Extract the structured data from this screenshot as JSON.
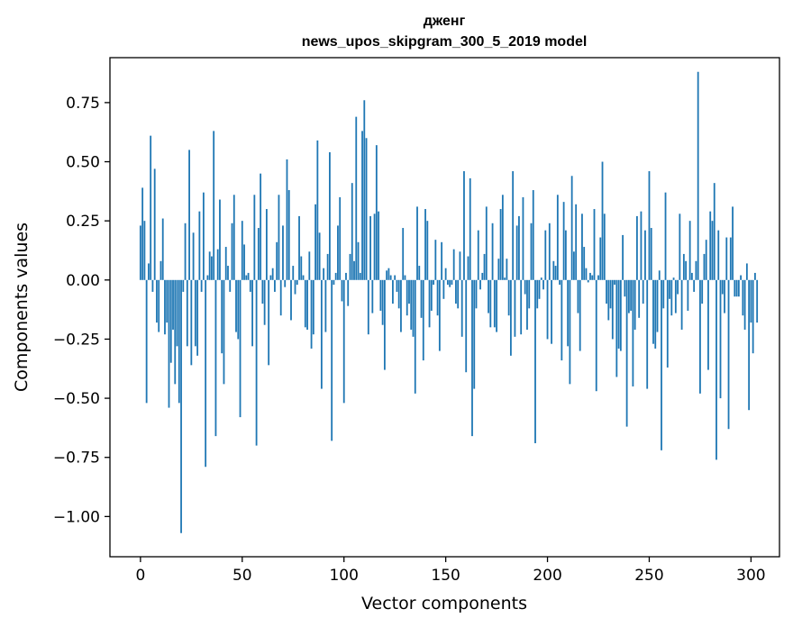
{
  "chart_data": {
    "type": "bar",
    "title": "дженг",
    "subtitle": "news_upos_skipgram_300_5_2019 model",
    "xlabel": "Vector components",
    "ylabel": "Components values",
    "xlim": [
      -15,
      314
    ],
    "ylim": [
      -1.17,
      0.94
    ],
    "xticks": [
      0,
      50,
      100,
      150,
      200,
      250,
      300
    ],
    "yticks": [
      -1.0,
      -0.75,
      -0.5,
      -0.25,
      0.0,
      0.25,
      0.5,
      0.75
    ],
    "ytick_labels": [
      "−1.00",
      "−0.75",
      "−0.50",
      "−0.25",
      "0.00",
      "0.25",
      "0.50",
      "0.75"
    ],
    "bar_color": "#1f77b4",
    "values": [
      0.23,
      0.39,
      0.25,
      -0.52,
      0.07,
      0.61,
      -0.05,
      0.47,
      -0.18,
      -0.22,
      0.08,
      0.26,
      -0.23,
      -0.18,
      -0.54,
      -0.35,
      -0.21,
      -0.44,
      -0.28,
      -0.52,
      -1.07,
      -0.05,
      0.24,
      -0.28,
      0.55,
      -0.36,
      0.2,
      -0.28,
      -0.32,
      0.29,
      -0.05,
      0.37,
      -0.79,
      0.02,
      0.12,
      0.1,
      0.63,
      -0.66,
      0.13,
      0.34,
      -0.31,
      -0.44,
      0.14,
      0.06,
      -0.05,
      0.24,
      0.36,
      -0.22,
      -0.25,
      -0.58,
      0.25,
      0.15,
      0.02,
      0.03,
      -0.05,
      -0.28,
      0.36,
      -0.7,
      0.22,
      0.45,
      -0.1,
      -0.19,
      0.3,
      -0.36,
      0.02,
      0.05,
      -0.05,
      0.16,
      0.36,
      -0.15,
      0.23,
      -0.03,
      0.51,
      0.38,
      -0.17,
      0.06,
      -0.06,
      -0.02,
      0.27,
      0.1,
      0.02,
      -0.2,
      -0.21,
      0.12,
      -0.29,
      -0.23,
      0.32,
      0.59,
      0.2,
      -0.46,
      0.05,
      -0.22,
      0.11,
      0.54,
      -0.68,
      -0.02,
      0.03,
      0.23,
      0.35,
      -0.09,
      -0.52,
      0.03,
      -0.11,
      0.11,
      0.41,
      0.08,
      0.69,
      0.16,
      0.03,
      0.63,
      0.76,
      0.6,
      -0.23,
      0.27,
      -0.14,
      0.28,
      0.57,
      0.29,
      -0.13,
      -0.19,
      -0.38,
      0.04,
      0.05,
      0.02,
      -0.1,
      0.02,
      -0.05,
      -0.12,
      -0.22,
      0.22,
      0.02,
      -0.15,
      -0.1,
      -0.21,
      -0.24,
      -0.48,
      0.31,
      0.06,
      -0.16,
      -0.34,
      0.3,
      0.25,
      -0.2,
      -0.13,
      -0.02,
      0.17,
      -0.15,
      -0.3,
      0.16,
      -0.08,
      0.05,
      -0.02,
      -0.03,
      -0.02,
      0.13,
      -0.1,
      -0.12,
      0.12,
      -0.24,
      0.46,
      -0.39,
      0.1,
      0.43,
      -0.66,
      -0.46,
      -0.12,
      0.21,
      -0.04,
      0.03,
      0.11,
      0.31,
      -0.14,
      -0.2,
      0.24,
      -0.2,
      -0.22,
      0.09,
      0.3,
      0.36,
      0.01,
      0.09,
      -0.15,
      -0.32,
      0.46,
      -0.24,
      0.23,
      0.27,
      -0.23,
      0.35,
      -0.06,
      -0.21,
      -0.12,
      0.24,
      0.38,
      -0.69,
      -0.12,
      -0.08,
      0.01,
      -0.04,
      0.21,
      -0.25,
      0.24,
      -0.27,
      0.08,
      0.06,
      0.36,
      -0.02,
      -0.34,
      0.33,
      0.21,
      -0.28,
      -0.44,
      0.44,
      0.12,
      0.32,
      -0.14,
      -0.3,
      0.28,
      0.14,
      0.05,
      -0.01,
      0.03,
      0.02,
      0.3,
      -0.47,
      0.02,
      0.18,
      0.5,
      0.28,
      -0.1,
      -0.17,
      -0.12,
      -0.25,
      -0.02,
      -0.41,
      -0.29,
      -0.3,
      0.19,
      -0.07,
      -0.62,
      -0.14,
      -0.13,
      -0.45,
      -0.21,
      0.27,
      -0.16,
      0.29,
      -0.1,
      0.21,
      -0.46,
      0.46,
      0.22,
      -0.27,
      -0.29,
      -0.22,
      0.04,
      -0.72,
      -0.12,
      0.37,
      -0.37,
      -0.08,
      -0.15,
      0.01,
      -0.14,
      -0.06,
      0.28,
      -0.21,
      0.11,
      0.08,
      -0.13,
      0.25,
      0.03,
      -0.05,
      0.08,
      0.88,
      -0.48,
      -0.1,
      0.11,
      0.17,
      -0.38,
      0.29,
      0.25,
      0.41,
      -0.76,
      0.21,
      -0.5,
      -0.06,
      -0.14,
      0.18,
      -0.63,
      0.18,
      0.31,
      -0.07,
      -0.07,
      -0.07,
      0.02,
      -0.15,
      -0.21,
      0.07,
      -0.55,
      -0.18,
      -0.31,
      0.03,
      -0.18
    ]
  }
}
